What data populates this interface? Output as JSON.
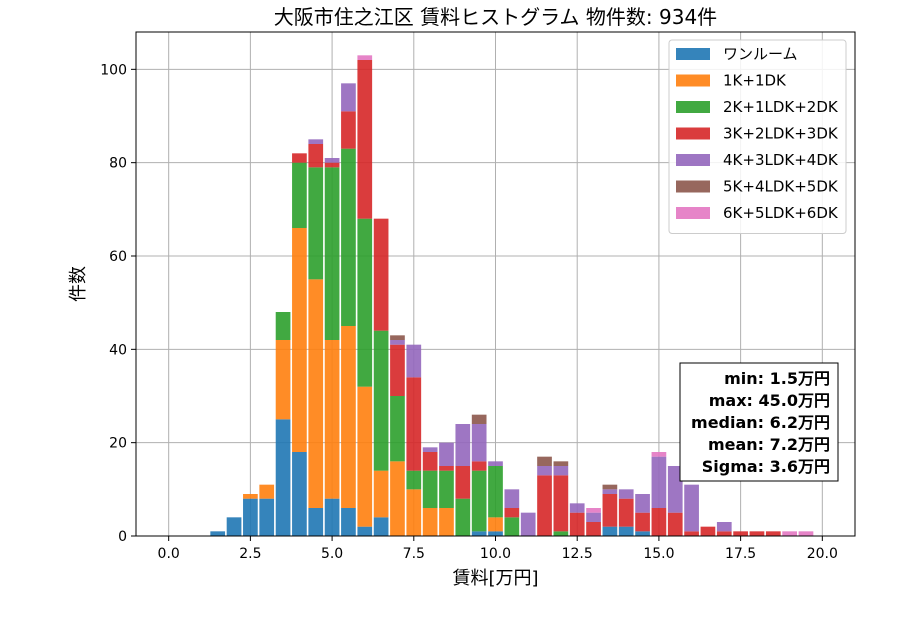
{
  "chart_data": {
    "type": "bar",
    "stacked": true,
    "title": "大阪市住之江区 賃料ヒストグラム  物件数: 934件",
    "xlabel": "賃料[万円]",
    "ylabel": "件数",
    "xlim": [
      -1.0,
      21.0
    ],
    "ylim": [
      0,
      108
    ],
    "xticks": [
      0.0,
      2.5,
      5.0,
      7.5,
      10.0,
      12.5,
      15.0,
      17.5,
      20.0
    ],
    "xtick_labels": [
      "0.0",
      "2.5",
      "5.0",
      "7.5",
      "10.0",
      "12.5",
      "15.0",
      "17.5",
      "20.0"
    ],
    "yticks": [
      0,
      20,
      40,
      60,
      80,
      100
    ],
    "ytick_labels": [
      "0",
      "20",
      "40",
      "60",
      "80",
      "100"
    ],
    "grid": true,
    "legend_position": "top-right",
    "bin_width": 0.5,
    "x": [
      1.5,
      2.0,
      2.5,
      3.0,
      3.5,
      4.0,
      4.5,
      5.0,
      5.5,
      6.0,
      6.5,
      7.0,
      7.5,
      8.0,
      8.5,
      9.0,
      9.5,
      10.0,
      10.5,
      11.0,
      11.5,
      12.0,
      12.5,
      13.0,
      13.5,
      14.0,
      14.5,
      15.0,
      15.5,
      16.0,
      16.5,
      17.0,
      17.5,
      18.0,
      18.5,
      19.0,
      19.5
    ],
    "series": [
      {
        "name": "ワンルーム",
        "color": "#1f77b4",
        "values": [
          1,
          4,
          8,
          8,
          25,
          18,
          6,
          8,
          6,
          2,
          4,
          0,
          0,
          0,
          0,
          0,
          1,
          1,
          0,
          0,
          0,
          0,
          0,
          0,
          2,
          2,
          1,
          0,
          0,
          0,
          0,
          0,
          0,
          0,
          0,
          0,
          0
        ]
      },
      {
        "name": "1K+1DK",
        "color": "#ff7f0e",
        "values": [
          0,
          0,
          1,
          3,
          17,
          48,
          49,
          34,
          39,
          30,
          10,
          16,
          10,
          6,
          6,
          0,
          0,
          3,
          0,
          0,
          0,
          0,
          0,
          0,
          0,
          0,
          0,
          0,
          0,
          0,
          0,
          0,
          0,
          0,
          0,
          0,
          0
        ]
      },
      {
        "name": "2K+1LDK+2DK",
        "color": "#2ca02c",
        "values": [
          0,
          0,
          0,
          0,
          6,
          14,
          24,
          37,
          38,
          36,
          30,
          14,
          4,
          8,
          8,
          8,
          13,
          11,
          4,
          0,
          0,
          1,
          0,
          0,
          0,
          0,
          0,
          0,
          0,
          0,
          0,
          0,
          0,
          0,
          0,
          0,
          0
        ]
      },
      {
        "name": "3K+2LDK+3DK",
        "color": "#d62728",
        "values": [
          0,
          0,
          0,
          0,
          0,
          2,
          5,
          1,
          8,
          34,
          24,
          11,
          20,
          4,
          1,
          7,
          2,
          0,
          2,
          0,
          13,
          12,
          5,
          3,
          7,
          6,
          4,
          6,
          5,
          1,
          2,
          1,
          1,
          1,
          1,
          0,
          0
        ]
      },
      {
        "name": "4K+3LDK+4DK",
        "color": "#9467bd",
        "values": [
          0,
          0,
          0,
          0,
          0,
          0,
          1,
          1,
          6,
          0,
          0,
          1,
          7,
          1,
          5,
          9,
          8,
          1,
          4,
          5,
          2,
          2,
          2,
          2,
          1,
          2,
          4,
          11,
          10,
          10,
          0,
          2,
          0,
          0,
          0,
          0,
          0
        ]
      },
      {
        "name": "5K+4LDK+5DK",
        "color": "#8c564b",
        "values": [
          0,
          0,
          0,
          0,
          0,
          0,
          0,
          0,
          0,
          0,
          0,
          1,
          0,
          0,
          0,
          0,
          2,
          0,
          0,
          0,
          2,
          1,
          0,
          0,
          1,
          0,
          0,
          0,
          0,
          0,
          0,
          0,
          0,
          0,
          0,
          0,
          0
        ]
      },
      {
        "name": "6K+5LDK+6DK",
        "color": "#e377c2",
        "values": [
          0,
          0,
          0,
          0,
          0,
          0,
          0,
          0,
          0,
          1,
          0,
          0,
          0,
          0,
          0,
          0,
          0,
          0,
          0,
          0,
          0,
          0,
          0,
          1,
          0,
          0,
          0,
          1,
          0,
          0,
          0,
          0,
          0,
          0,
          0,
          1,
          1
        ]
      }
    ],
    "stats_box": {
      "position": "right",
      "lines": [
        "min: 1.5万円",
        "max: 45.0万円",
        "median: 6.2万円",
        "mean: 7.2万円",
        "Sigma: 3.6万円"
      ]
    }
  }
}
